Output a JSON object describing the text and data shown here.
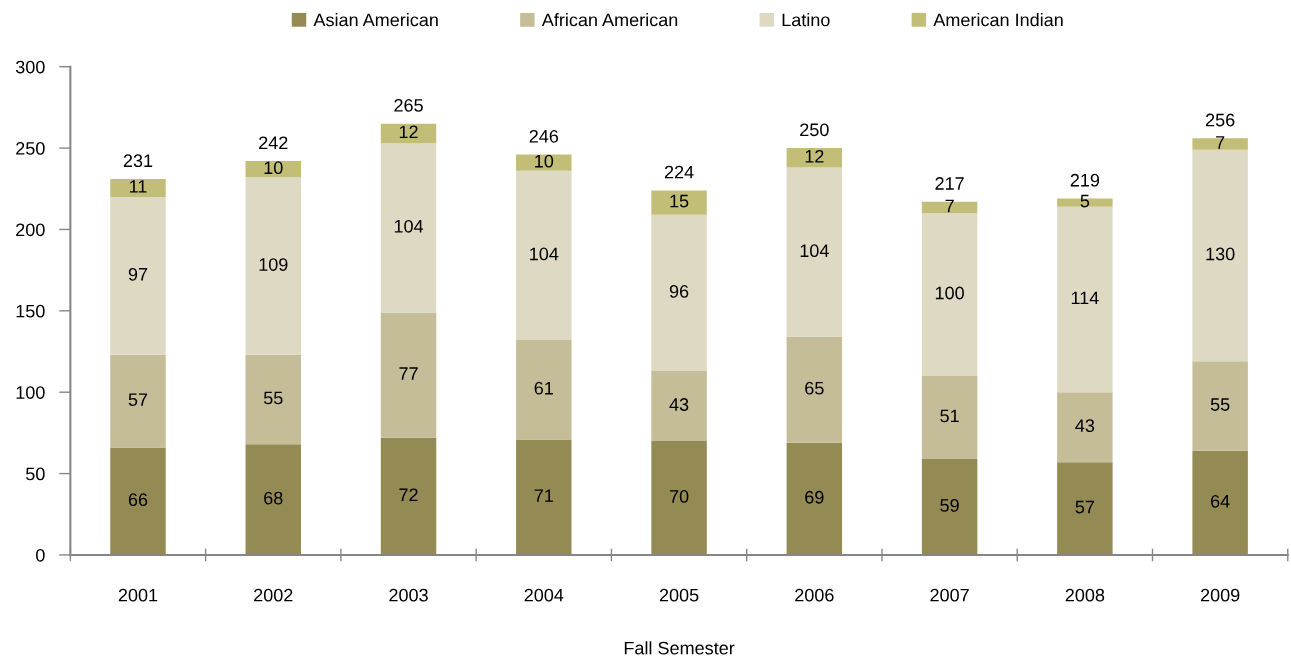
{
  "chart_data": {
    "type": "bar",
    "stacked": true,
    "xlabel": "Fall Semester",
    "categories": [
      "2001",
      "2002",
      "2003",
      "2004",
      "2005",
      "2006",
      "2007",
      "2008",
      "2009"
    ],
    "series": [
      {
        "name": "Asian American",
        "color": "#948a54",
        "values": [
          66,
          68,
          72,
          71,
          70,
          69,
          59,
          57,
          64
        ]
      },
      {
        "name": "African American",
        "color": "#c4bd97",
        "values": [
          57,
          55,
          77,
          61,
          43,
          65,
          51,
          43,
          55
        ]
      },
      {
        "name": "Latino",
        "color": "#ddd9c3",
        "values": [
          97,
          109,
          104,
          104,
          96,
          104,
          100,
          114,
          130
        ]
      },
      {
        "name": "American Indian",
        "color": "#c3be77",
        "values": [
          11,
          10,
          12,
          10,
          15,
          12,
          7,
          5,
          7
        ]
      }
    ],
    "totals": [
      "231",
      "242",
      "265",
      "246",
      "224",
      "250",
      "217",
      "219",
      "256"
    ],
    "data_labels": true,
    "ylim": [
      0,
      300
    ],
    "yticks": [
      0,
      50,
      100,
      150,
      200,
      250,
      300
    ],
    "grid": false,
    "legend": "top"
  }
}
